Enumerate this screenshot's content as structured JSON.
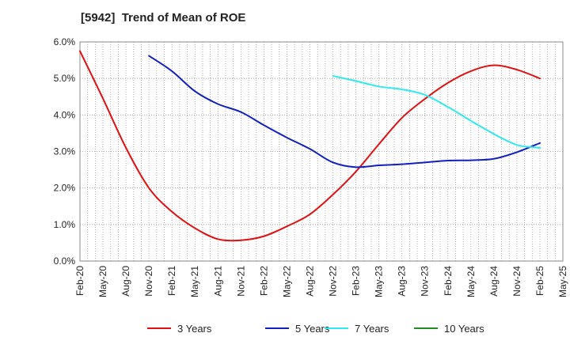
{
  "chart_data": {
    "type": "line",
    "title": "[5942]  Trend of Mean of ROE",
    "xlabel": "",
    "ylabel": "",
    "x": [
      "Feb-20",
      "May-20",
      "Aug-20",
      "Nov-20",
      "Feb-21",
      "May-21",
      "Aug-21",
      "Nov-21",
      "Feb-22",
      "May-22",
      "Aug-22",
      "Nov-22",
      "Feb-23",
      "May-23",
      "Aug-23",
      "Nov-23",
      "Feb-24",
      "May-24",
      "Aug-24",
      "Nov-24",
      "Feb-25",
      "May-25"
    ],
    "ylim": [
      0,
      6
    ],
    "yticks": [
      0,
      1,
      2,
      3,
      4,
      5,
      6
    ],
    "ytick_labels": [
      "0.0%",
      "1.0%",
      "2.0%",
      "3.0%",
      "4.0%",
      "5.0%",
      "6.0%"
    ],
    "grid": true,
    "legend_position": "bottom",
    "series": [
      {
        "name": "3 Years",
        "color": "#e01010",
        "values": [
          5.75,
          4.45,
          3.1,
          2.0,
          1.35,
          0.9,
          0.6,
          0.57,
          0.68,
          0.95,
          1.28,
          1.82,
          2.45,
          3.2,
          3.92,
          4.44,
          4.88,
          5.2,
          5.36,
          5.24,
          5.0,
          null
        ]
      },
      {
        "name": "5 Years",
        "color": "#1020c0",
        "values": [
          null,
          null,
          null,
          5.62,
          5.2,
          4.65,
          4.3,
          4.08,
          3.72,
          3.38,
          3.07,
          2.7,
          2.57,
          2.62,
          2.65,
          2.7,
          2.75,
          2.76,
          2.8,
          2.98,
          3.23,
          null
        ]
      },
      {
        "name": "7 Years",
        "color": "#30e8f0",
        "values": [
          null,
          null,
          null,
          null,
          null,
          null,
          null,
          null,
          null,
          null,
          null,
          5.07,
          4.93,
          4.78,
          4.7,
          4.55,
          4.22,
          3.84,
          3.48,
          3.18,
          3.1,
          null
        ]
      },
      {
        "name": "10 Years",
        "color": "#228b22",
        "values": [
          null,
          null,
          null,
          null,
          null,
          null,
          null,
          null,
          null,
          null,
          null,
          null,
          null,
          null,
          null,
          null,
          null,
          null,
          null,
          null,
          null,
          null
        ]
      }
    ]
  }
}
